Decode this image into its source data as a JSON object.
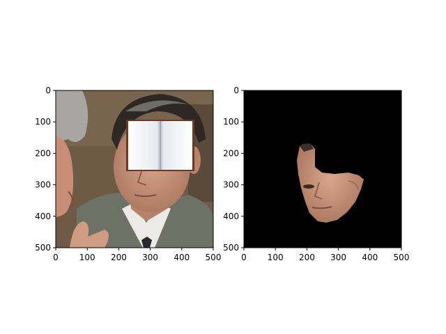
{
  "chart_data": [
    {
      "type": "image",
      "title": "",
      "xlabel": "",
      "ylabel": "",
      "xlim": [
        0,
        500
      ],
      "ylim": [
        500,
        0
      ],
      "x_ticks": [
        0,
        100,
        200,
        300,
        400,
        500
      ],
      "y_ticks": [
        0,
        100,
        200,
        300,
        400,
        500
      ],
      "content": "photo-face-with-occluder-book",
      "grid": false
    },
    {
      "type": "image",
      "title": "",
      "xlabel": "",
      "ylabel": "",
      "xlim": [
        0,
        500
      ],
      "ylim": [
        500,
        0
      ],
      "x_ticks": [
        0,
        100,
        200,
        300,
        400,
        500
      ],
      "y_ticks": [
        0,
        100,
        200,
        300,
        400,
        500
      ],
      "content": "segmented-face-on-black",
      "background": "#000000",
      "grid": false
    }
  ],
  "colors": {
    "background": "#ffffff",
    "photo_backdrop": "#6f5a45",
    "suit": "#6d7166",
    "skin": "#c9967d",
    "hair": "#2d2824",
    "mask_background": "#000000",
    "book_cover": "#6b3a24",
    "book_pages": "#f2f2f4"
  }
}
